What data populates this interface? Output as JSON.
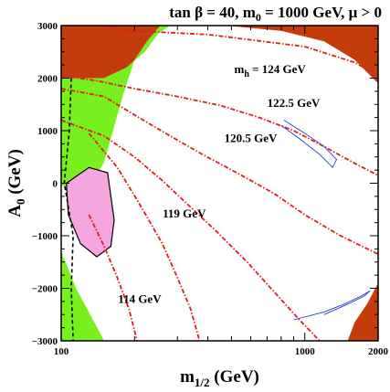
{
  "chart_data": {
    "type": "contour",
    "title": "tan β = 40, m0 = 1000 GeV, μ > 0",
    "title_parts": {
      "main": "tan β = 40, m",
      "sub": "0",
      "rest": " = 1000 GeV, μ > 0"
    },
    "xlabel": {
      "main": "m",
      "sub": "1/2",
      "rest": " (GeV)"
    },
    "ylabel": {
      "main": "A",
      "sub": "0",
      "rest": " (GeV)"
    },
    "xscale": "log",
    "xlim": [
      100,
      2000
    ],
    "ylim": [
      -3000,
      3000
    ],
    "x_tick_labels": [
      {
        "value": 100,
        "label": "100"
      },
      {
        "value": 1000,
        "label": "1000"
      },
      {
        "value": 2000,
        "label": "2000"
      }
    ],
    "y_tick_labels": [
      {
        "value": 3000,
        "label": "3000"
      },
      {
        "value": 2000,
        "label": "2000"
      },
      {
        "value": 1000,
        "label": "1000"
      },
      {
        "value": 0,
        "label": "0"
      },
      {
        "value": -1000,
        "label": "−1000"
      },
      {
        "value": -2000,
        "label": "−2000"
      },
      {
        "value": -3000,
        "label": "−3000"
      }
    ],
    "colors": {
      "excluded": "#c43c0b",
      "green": "#77f01e",
      "pink": "#f5a6de",
      "higgs_contour": "#e8191c",
      "blue_contour": "#1f3fd1"
    },
    "regions": {
      "excluded_top_right": [
        [
          170,
          3000
        ],
        [
          2000,
          3000
        ],
        [
          2000,
          1900
        ],
        [
          1600,
          2350
        ],
        [
          1200,
          2700
        ],
        [
          800,
          2900
        ],
        [
          500,
          2990
        ],
        [
          300,
          3000
        ]
      ],
      "excluded_left": [
        [
          100,
          2850
        ],
        [
          100,
          3000
        ],
        [
          275,
          3000
        ],
        [
          250,
          2850
        ],
        [
          220,
          2500
        ],
        [
          185,
          2200
        ],
        [
          150,
          2000
        ],
        [
          100,
          2000
        ]
      ],
      "excluded_bottom_right": [
        [
          1500,
          -3000
        ],
        [
          2000,
          -3000
        ],
        [
          2000,
          -1900
        ],
        [
          1800,
          -2300
        ],
        [
          1600,
          -2650
        ]
      ],
      "green_upper": [
        [
          100,
          2000
        ],
        [
          150,
          2000
        ],
        [
          185,
          2200
        ],
        [
          220,
          2500
        ],
        [
          250,
          2850
        ],
        [
          280,
          3000
        ],
        [
          255,
          3000
        ],
        [
          225,
          2700
        ],
        [
          200,
          2350
        ],
        [
          180,
          1700
        ],
        [
          150,
          400
        ],
        [
          125,
          -200
        ],
        [
          105,
          -150
        ],
        [
          100,
          0
        ]
      ],
      "green_strip": [
        [
          100,
          -1300
        ],
        [
          115,
          -2000
        ],
        [
          135,
          -2600
        ],
        [
          150,
          -3000
        ],
        [
          100,
          -3000
        ]
      ],
      "pink_ellipse": [
        [
          105,
          0
        ],
        [
          130,
          300
        ],
        [
          155,
          200
        ],
        [
          165,
          -700
        ],
        [
          160,
          -1200
        ],
        [
          140,
          -1400
        ],
        [
          120,
          -1150
        ],
        [
          107,
          -600
        ]
      ]
    },
    "contours": [
      {
        "label": "m_h = 124 GeV",
        "label_main": "m",
        "label_sub": "h",
        "label_rest": " = 124 GeV",
        "at": [
          720,
          2100
        ],
        "points": [
          [
            100,
            2050
          ],
          [
            140,
            1950
          ],
          [
            200,
            1800
          ],
          [
            300,
            1650
          ],
          [
            450,
            1480
          ],
          [
            650,
            1250
          ],
          [
            900,
            1000
          ],
          [
            1200,
            700
          ],
          [
            1600,
            380
          ],
          [
            2000,
            150
          ]
        ]
      },
      {
        "label": "122.5 GeV",
        "at": [
          900,
          1450
        ],
        "points": [
          [
            100,
            1800
          ],
          [
            150,
            1650
          ],
          [
            200,
            1300
          ],
          [
            280,
            900
          ],
          [
            380,
            550
          ],
          [
            550,
            150
          ],
          [
            750,
            -200
          ],
          [
            1000,
            -600
          ],
          [
            1400,
            -1000
          ],
          [
            2000,
            -1350
          ]
        ]
      },
      {
        "label": "120.5 GeV",
        "at": [
          600,
          780
        ],
        "points": [
          [
            100,
            1200
          ],
          [
            150,
            900
          ],
          [
            200,
            500
          ],
          [
            260,
            50
          ],
          [
            330,
            -400
          ],
          [
            430,
            -900
          ],
          [
            580,
            -1500
          ],
          [
            760,
            -2100
          ],
          [
            950,
            -2600
          ],
          [
            1150,
            -3000
          ]
        ]
      },
      {
        "label": "119 GeV",
        "at": [
          320,
          -650
        ],
        "points": [
          [
            130,
            950
          ],
          [
            170,
            300
          ],
          [
            210,
            -400
          ],
          [
            260,
            -1150
          ],
          [
            300,
            -1800
          ],
          [
            340,
            -2400
          ],
          [
            370,
            -3000
          ]
        ]
      },
      {
        "label": "114 GeV",
        "at": [
          210,
          -2280
        ],
        "points": [
          [
            130,
            -600
          ],
          [
            150,
            -1200
          ],
          [
            170,
            -1800
          ],
          [
            190,
            -2400
          ],
          [
            205,
            -3000
          ]
        ]
      },
      {
        "label": "",
        "points": [
          [
            150,
            2990
          ],
          [
            200,
            2900
          ],
          [
            400,
            2830
          ],
          [
            1000,
            2600
          ],
          [
            1600,
            2300
          ],
          [
            2000,
            2050
          ]
        ]
      }
    ],
    "blue_contours": [
      [
        [
          820,
          1200
        ],
        [
          1000,
          950
        ],
        [
          1200,
          700
        ],
        [
          1350,
          450
        ],
        [
          1300,
          300
        ],
        [
          1150,
          550
        ],
        [
          950,
          850
        ],
        [
          800,
          1100
        ]
      ],
      [
        [
          900,
          -2600
        ],
        [
          1200,
          -2450
        ],
        [
          1450,
          -2300
        ],
        [
          1700,
          -2150
        ],
        [
          1850,
          -2050
        ],
        [
          1750,
          -2150
        ],
        [
          1500,
          -2300
        ],
        [
          1200,
          -2500
        ]
      ]
    ],
    "dashed_boundary": [
      [
        110,
        2000
      ],
      [
        108,
        1000
      ],
      [
        103,
        0
      ],
      [
        112,
        -1000
      ],
      [
        110,
        -2000
      ],
      [
        112,
        -3000
      ]
    ]
  }
}
